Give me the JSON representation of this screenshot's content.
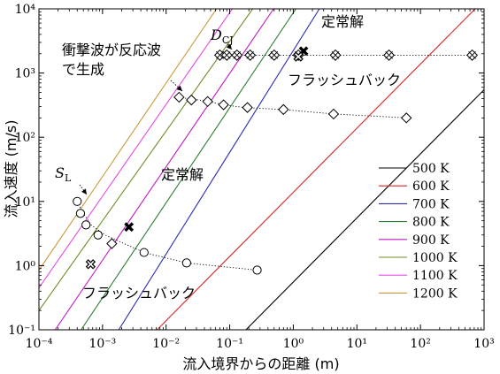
{
  "chart_data": {
    "type": "line",
    "xlabel": "流入境界からの距離 (m)",
    "ylabel": "流入速度 (m/s)",
    "xscale": "log",
    "yscale": "log",
    "xlim": [
      0.0001,
      1000
    ],
    "ylim": [
      0.1,
      10000
    ],
    "x_tick_labels": [
      "10⁻⁴",
      "10⁻³",
      "10⁻²",
      "10⁻¹",
      "10⁰",
      "10¹",
      "10²",
      "10³"
    ],
    "y_tick_labels": [
      "10⁻¹",
      "10⁰",
      "10¹",
      "10²",
      "10³",
      "10⁴"
    ],
    "grid": false,
    "legend_position": "lower-right",
    "series": [
      {
        "name": "500 K",
        "color": "#000000",
        "x": [
          0.18,
          1000
        ],
        "y": [
          0.1,
          550
        ]
      },
      {
        "name": "600 K",
        "color": "#d62728",
        "x": [
          0.0072,
          1000
        ],
        "y": [
          0.1,
          13800
        ]
      },
      {
        "name": "700 K",
        "color": "#2b2bb5",
        "x": [
          0.0018,
          2.57
        ],
        "y": [
          0.1,
          10000
        ]
      },
      {
        "name": "800 K",
        "color": "#2e7d32",
        "x": [
          0.00046,
          1.1
        ],
        "y": [
          0.1,
          10000
        ]
      },
      {
        "name": "900 K",
        "color": "#c218c2",
        "x": [
          0.00018,
          0.49
        ],
        "y": [
          0.1,
          10000
        ]
      },
      {
        "name": "1000 K",
        "color": "#6b8e23",
        "x": [
          0.0001,
          0.23
        ],
        "y": [
          0.2,
          10000
        ]
      },
      {
        "name": "1100 K",
        "color": "#e64ce6",
        "x": [
          0.0001,
          0.11
        ],
        "y": [
          0.45,
          10000
        ]
      },
      {
        "name": "1200 K",
        "color": "#c89a3a",
        "x": [
          0.0001,
          0.062
        ],
        "y": [
          0.85,
          10000
        ]
      }
    ],
    "dotted_curves": [
      {
        "x": [
          0.0004,
          0.0005,
          0.00066,
          0.0011,
          0.0045,
          0.021,
          0.27
        ],
        "y": [
          10,
          6.5,
          4.3,
          3.0,
          1.6,
          1.1,
          0.85
        ]
      },
      {
        "x": [
          0.016,
          0.022,
          0.04,
          0.08,
          0.17,
          0.7,
          4.3,
          60
        ],
        "y": [
          420,
          400,
          370,
          320,
          290,
          270,
          230,
          200
        ]
      },
      {
        "x": [
          0.07,
          0.12,
          0.2,
          0.5,
          1.2,
          4.6,
          32,
          650
        ],
        "y": [
          1900,
          1900,
          1900,
          1900,
          1900,
          1900,
          1900,
          1900
        ]
      }
    ],
    "open_circles": [
      {
        "x": 0.0004,
        "y": 10
      },
      {
        "x": 0.00045,
        "y": 6.5
      },
      {
        "x": 0.00055,
        "y": 4.3
      },
      {
        "x": 0.00085,
        "y": 3.0
      },
      {
        "x": 0.0045,
        "y": 1.6
      },
      {
        "x": 0.021,
        "y": 1.1
      },
      {
        "x": 0.27,
        "y": 0.85
      }
    ],
    "open_diamonds_low": [
      {
        "x": 0.0014,
        "y": 2.2
      },
      {
        "x": 0.016,
        "y": 420
      },
      {
        "x": 0.025,
        "y": 380
      },
      {
        "x": 0.045,
        "y": 360
      },
      {
        "x": 0.08,
        "y": 320
      },
      {
        "x": 0.19,
        "y": 290
      },
      {
        "x": 0.7,
        "y": 270
      },
      {
        "x": 4.3,
        "y": 230
      },
      {
        "x": 60,
        "y": 200
      }
    ],
    "diamonds_with_x_cj": [
      {
        "x": 0.07,
        "y": 1900
      },
      {
        "x": 0.09,
        "y": 1900
      },
      {
        "x": 0.13,
        "y": 1900
      },
      {
        "x": 0.21,
        "y": 1900
      },
      {
        "x": 0.5,
        "y": 1900
      },
      {
        "x": 1.2,
        "y": 1900
      },
      {
        "x": 4.6,
        "y": 1900
      },
      {
        "x": 32,
        "y": 1900
      },
      {
        "x": 650,
        "y": 1900
      }
    ],
    "cross_markers": [
      {
        "x": 0.0026,
        "y": 4.0,
        "filled": true
      },
      {
        "x": 0.00065,
        "y": 1.05,
        "filled": false
      },
      {
        "x": 1.45,
        "y": 2200,
        "filled": true
      },
      {
        "x": 1.2,
        "y": 1800,
        "filled": false
      }
    ],
    "annotations": {
      "dcj_label_main": "D",
      "dcj_label_sub": "CJ",
      "sl_label_main": "S",
      "sl_label_sub": "L",
      "reflect_line1": "衝撃波が反応波",
      "reflect_line2": "で生成",
      "steady_upper": "定常解",
      "flashback_upper": "フラッシュバック",
      "steady_lower": "定常解",
      "flashback_lower": "フラッシュバック"
    }
  }
}
